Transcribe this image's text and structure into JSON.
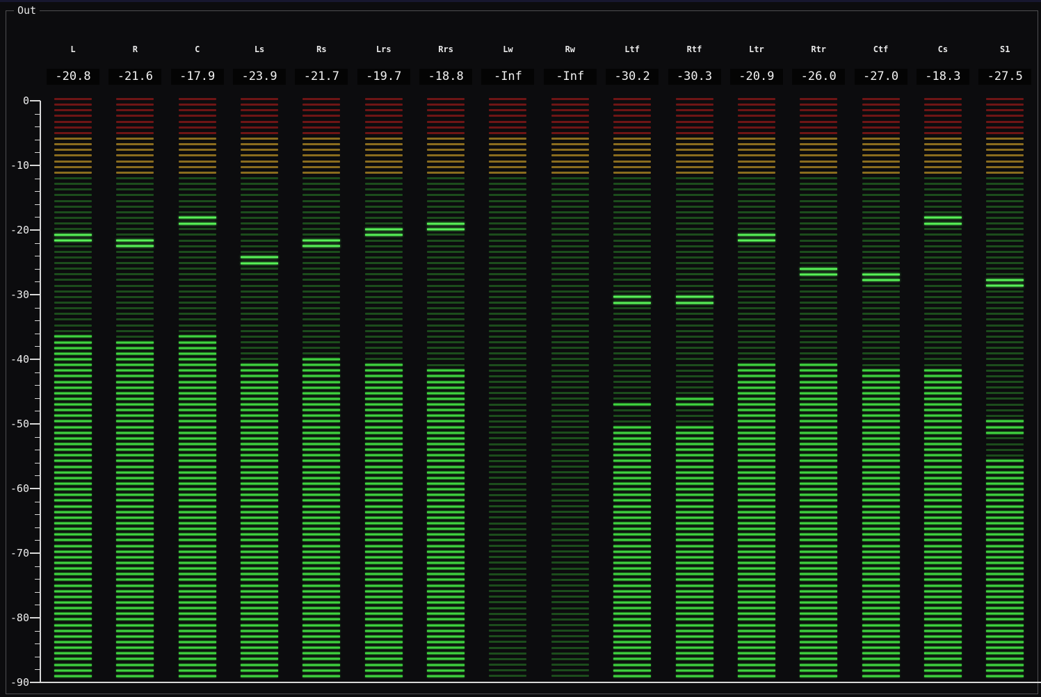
{
  "window": {
    "top_strip_color": "#17172f"
  },
  "panel": {
    "title": "Out",
    "bg": "#0c0c0e",
    "border_color": "#4f4f52",
    "title_color": "#e6e6e6"
  },
  "axis": {
    "labels": [
      "0",
      "-10",
      "-20",
      "-30",
      "-40",
      "-50",
      "-60",
      "-70",
      "-80",
      "-90"
    ],
    "major_step_db": 10,
    "minor_step_db": 2,
    "db_max": 0,
    "db_min": -90,
    "line_color": "#d8d8d8",
    "text_color": "#eeeeee"
  },
  "meter": {
    "zone_red_above_db": -5.4,
    "zone_yellow_above_db": -11.4,
    "colors": {
      "dim_red": "#6e1515",
      "dim_yellow": "#8a6c1e",
      "dim_green": "#1c4c1c",
      "lit_green_core": "#41d341",
      "lit_green_edge": "#186018",
      "peak_green_core": "#5aef5a",
      "peak_green_edge": "#1a6a1a"
    }
  },
  "readout": {
    "bg": "#040404",
    "text_color": "#f2f2f2",
    "label_color": "#e8e8e8"
  },
  "channels": [
    {
      "label": "L",
      "value": "-20.8",
      "peak_db": -20.8,
      "lit_from_db": -36.5,
      "patches": []
    },
    {
      "label": "R",
      "value": "-21.6",
      "peak_db": -21.6,
      "lit_from_db": -37.4,
      "patches": []
    },
    {
      "label": "C",
      "value": "-17.9",
      "peak_db": -17.9,
      "lit_from_db": -36.5,
      "patches": []
    },
    {
      "label": "Ls",
      "value": "-23.9",
      "peak_db": -23.9,
      "lit_from_db": -40.6,
      "patches": []
    },
    {
      "label": "Rs",
      "value": "-21.7",
      "peak_db": -21.7,
      "lit_from_db": -40.0,
      "patches": []
    },
    {
      "label": "Lrs",
      "value": "-19.7",
      "peak_db": -19.7,
      "lit_from_db": -40.7,
      "patches": []
    },
    {
      "label": "Rrs",
      "value": "-18.8",
      "peak_db": -18.8,
      "lit_from_db": -41.6,
      "patches": []
    },
    {
      "label": "Lw",
      "value": "-Inf",
      "peak_db": null,
      "lit_from_db": null,
      "patches": []
    },
    {
      "label": "Rw",
      "value": "-Inf",
      "peak_db": null,
      "lit_from_db": null,
      "patches": []
    },
    {
      "label": "Ltf",
      "value": "-30.2",
      "peak_db": -30.2,
      "lit_from_db": -50.2,
      "patches": [
        -46.9
      ]
    },
    {
      "label": "Rtf",
      "value": "-30.3",
      "peak_db": -30.3,
      "lit_from_db": -50.2,
      "patches": [
        -46.0,
        -46.9
      ]
    },
    {
      "label": "Ltr",
      "value": "-20.9",
      "peak_db": -20.9,
      "lit_from_db": -40.9,
      "patches": []
    },
    {
      "label": "Rtr",
      "value": "-26.0",
      "peak_db": -26.0,
      "lit_from_db": -40.8,
      "patches": []
    },
    {
      "label": "Ctf",
      "value": "-27.0",
      "peak_db": -27.0,
      "lit_from_db": -42.1,
      "patches": []
    },
    {
      "label": "Cs",
      "value": "-18.3",
      "peak_db": -18.3,
      "lit_from_db": -41.6,
      "patches": []
    },
    {
      "label": "S1",
      "value": "-27.5",
      "peak_db": -27.5,
      "lit_from_db": -55.5,
      "patches": [
        -49.2,
        -50.1,
        -51.0,
        -51.8
      ]
    }
  ]
}
